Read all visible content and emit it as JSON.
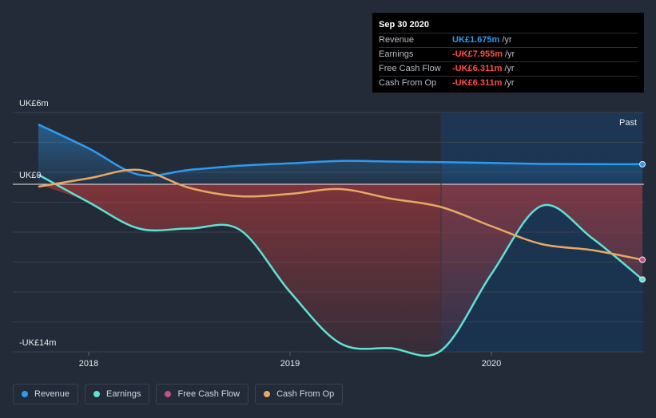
{
  "tooltip": {
    "date": "Sep 30 2020",
    "rows": [
      {
        "label": "Revenue",
        "value": "UK£1.675m",
        "unit": "/yr",
        "color": "#2e9af0"
      },
      {
        "label": "Earnings",
        "value": "-UK£7.955m",
        "unit": "/yr",
        "color": "#ff4d4d"
      },
      {
        "label": "Free Cash Flow",
        "value": "-UK£6.311m",
        "unit": "/yr",
        "color": "#ff4d4d"
      },
      {
        "label": "Cash From Op",
        "value": "-UK£6.311m",
        "unit": "/yr",
        "color": "#ff4d4d"
      }
    ]
  },
  "legend": [
    {
      "label": "Revenue",
      "color": "#2e9af0"
    },
    {
      "label": "Earnings",
      "color": "#5de3d3"
    },
    {
      "label": "Free Cash Flow",
      "color": "#c84b8a"
    },
    {
      "label": "Cash From Op",
      "color": "#e8a963"
    }
  ],
  "chart_data": {
    "type": "area",
    "title": "",
    "y_top_label": "UK£6m",
    "y_zero_label": "UK£0",
    "y_bottom_label": "-UK£14m",
    "past_label": "Past",
    "ylim": [
      -14,
      6
    ],
    "xlim": [
      2017.75,
      2020.75
    ],
    "x_ticks": [
      {
        "x": 2018.0,
        "label": "2018"
      },
      {
        "x": 2019.0,
        "label": "2019"
      },
      {
        "x": 2020.0,
        "label": "2020"
      }
    ],
    "highlight_from_x": 2019.75,
    "series": [
      {
        "name": "Revenue",
        "color": "#2e9af0",
        "x": [
          2017.75,
          2018.0,
          2018.25,
          2018.5,
          2018.75,
          2019.0,
          2019.25,
          2019.5,
          2019.75,
          2020.0,
          2020.25,
          2020.5,
          2020.75
        ],
        "y": [
          5.0,
          3.0,
          0.8,
          1.2,
          1.55,
          1.75,
          1.95,
          1.9,
          1.85,
          1.78,
          1.7,
          1.68,
          1.675
        ]
      },
      {
        "name": "Earnings",
        "color": "#5de3d3",
        "x": [
          2017.75,
          2018.0,
          2018.25,
          2018.5,
          2018.75,
          2019.0,
          2019.25,
          2019.5,
          2019.75,
          2020.0,
          2020.25,
          2020.5,
          2020.75
        ],
        "y": [
          0.8,
          -1.5,
          -3.7,
          -3.7,
          -3.8,
          -9.0,
          -13.3,
          -13.7,
          -13.9,
          -7.5,
          -1.8,
          -4.5,
          -7.955
        ]
      },
      {
        "name": "Cash From Op",
        "color": "#e8a963",
        "x": [
          2017.75,
          2018.0,
          2018.25,
          2018.5,
          2018.75,
          2019.0,
          2019.25,
          2019.5,
          2019.75,
          2020.0,
          2020.25,
          2020.5,
          2020.75
        ],
        "y": [
          -0.2,
          0.5,
          1.2,
          -0.3,
          -1.0,
          -0.8,
          -0.4,
          -1.2,
          -1.9,
          -3.5,
          -5.0,
          -5.5,
          -6.311
        ]
      },
      {
        "name": "Free Cash Flow",
        "color": "#c84b8a",
        "x": [
          2020.75
        ],
        "y": [
          -6.311
        ]
      }
    ]
  }
}
